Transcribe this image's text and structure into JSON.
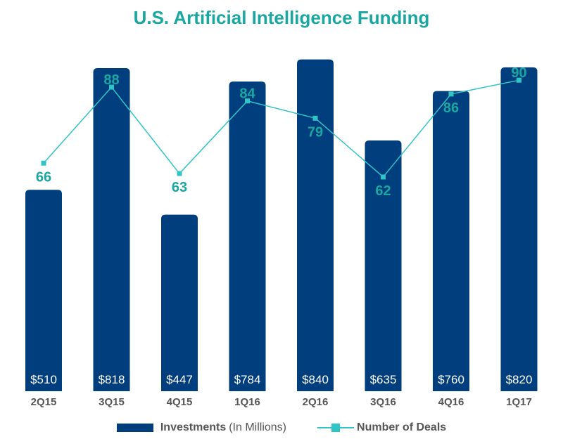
{
  "chart_data": {
    "type": "bar",
    "title": "U.S. Artificial Intelligence Funding",
    "categories": [
      "2Q15",
      "3Q15",
      "4Q15",
      "1Q16",
      "2Q16",
      "3Q16",
      "4Q16",
      "1Q17"
    ],
    "series": [
      {
        "name": "Investments",
        "name_suffix": "(In Millions)",
        "type": "bar",
        "values": [
          510,
          818,
          447,
          784,
          840,
          635,
          760,
          820
        ],
        "labels": [
          "$510",
          "$818",
          "$447",
          "$784",
          "$840",
          "$635",
          "$760",
          "$820"
        ]
      },
      {
        "name": "Number of Deals",
        "type": "line",
        "values": [
          66,
          88,
          63,
          84,
          79,
          62,
          86,
          90
        ],
        "labels": [
          "66",
          "88",
          "63",
          "84",
          "79",
          "62",
          "86",
          "90"
        ]
      }
    ],
    "bar_ylim": [
      0,
      875
    ],
    "line_ylim": [
      0,
      100
    ],
    "grid": false,
    "legend_position": "bottom",
    "colors": {
      "bar": "#003e7e",
      "line": "#2fc4c6",
      "title": "#1aa7a0",
      "line_label": "#1aa7a0"
    }
  }
}
